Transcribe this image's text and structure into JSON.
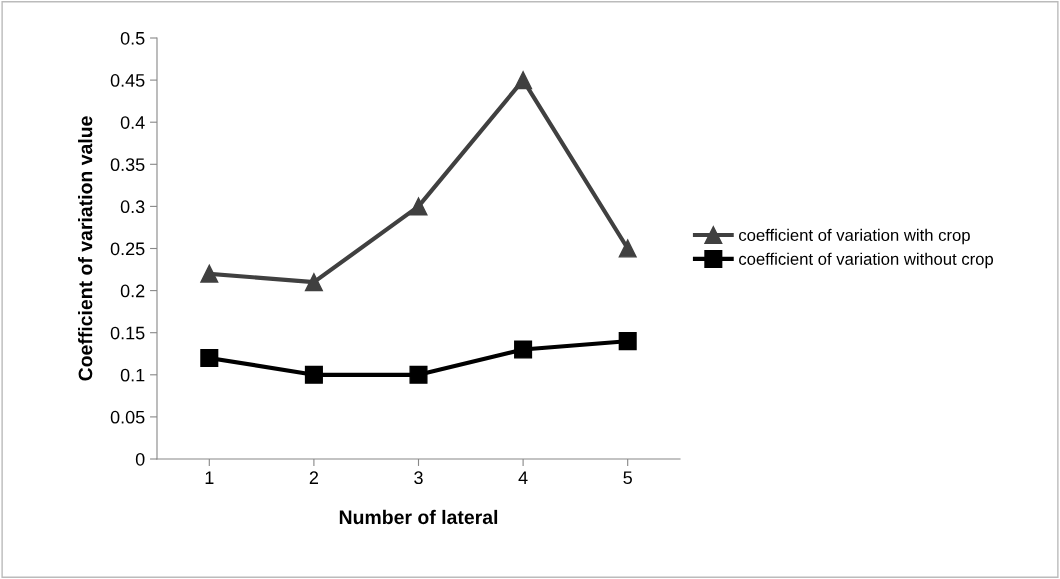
{
  "chart_data": {
    "type": "line",
    "xlabel": "Number of lateral",
    "ylabel": "Coefficient of variation value",
    "categories": [
      "1",
      "2",
      "3",
      "4",
      "5"
    ],
    "series": [
      {
        "name": "coefficient of variation with crop",
        "color": "#404040",
        "marker": "triangle",
        "values": [
          0.22,
          0.21,
          0.3,
          0.45,
          0.25
        ]
      },
      {
        "name": "coefficient of variation without crop",
        "color": "#000000",
        "marker": "square",
        "values": [
          0.12,
          0.1,
          0.1,
          0.13,
          0.14
        ]
      }
    ],
    "ylim": [
      0,
      0.5
    ],
    "yticks": [
      0,
      0.05,
      0.1,
      0.15,
      0.2,
      0.25,
      0.3,
      0.35,
      0.4,
      0.45,
      0.5
    ],
    "grid": false,
    "legend": "right",
    "line_style": "solid"
  }
}
